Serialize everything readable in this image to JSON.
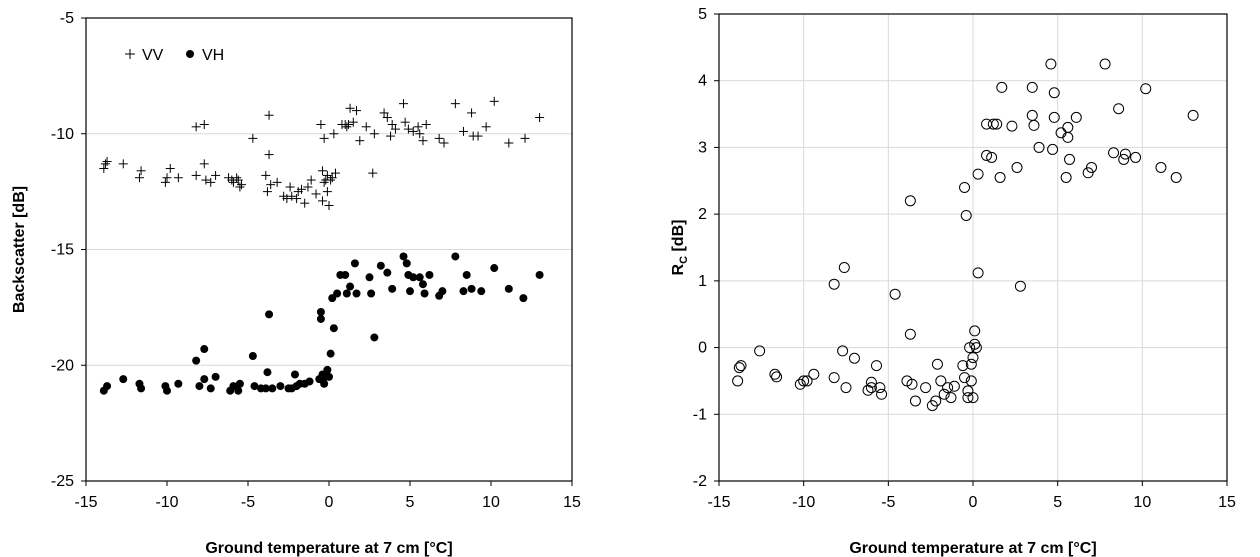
{
  "chart_data": [
    {
      "type": "scatter",
      "xlabel": "Ground temperature at 7 cm [°C]",
      "ylabel": "Backscatter [dB]",
      "xlim": [
        -15,
        15
      ],
      "ylim": [
        -25,
        -5
      ],
      "xticks": [
        -15,
        -10,
        -5,
        0,
        5,
        10,
        15
      ],
      "yticks": [
        -25,
        -20,
        -15,
        -10,
        -5
      ],
      "grid": "horizontal",
      "legend": "top-left",
      "series": [
        {
          "name": "VV",
          "marker": "plus",
          "points": [
            [
              -13.9,
              -11.5
            ],
            [
              -13.8,
              -11.3
            ],
            [
              -13.7,
              -11.2
            ],
            [
              -12.7,
              -11.3
            ],
            [
              -11.7,
              -11.9
            ],
            [
              -11.6,
              -11.6
            ],
            [
              -10.1,
              -12.1
            ],
            [
              -10.0,
              -11.9
            ],
            [
              -9.8,
              -11.5
            ],
            [
              -9.3,
              -11.9
            ],
            [
              -8.2,
              -11.8
            ],
            [
              -8.2,
              -9.7
            ],
            [
              -7.7,
              -9.6
            ],
            [
              -7.7,
              -11.3
            ],
            [
              -7.6,
              -12.0
            ],
            [
              -7.3,
              -12.1
            ],
            [
              -7.0,
              -11.8
            ],
            [
              -6.2,
              -11.9
            ],
            [
              -6.0,
              -12.0
            ],
            [
              -5.9,
              -12.1
            ],
            [
              -5.7,
              -11.9
            ],
            [
              -5.6,
              -12.0
            ],
            [
              -5.5,
              -12.3
            ],
            [
              -5.4,
              -12.2
            ],
            [
              -4.7,
              -10.2
            ],
            [
              -3.9,
              -11.8
            ],
            [
              -3.8,
              -12.5
            ],
            [
              -3.7,
              -9.2
            ],
            [
              -3.7,
              -10.9
            ],
            [
              -3.6,
              -12.2
            ],
            [
              -3.2,
              -12.1
            ],
            [
              -2.8,
              -12.7
            ],
            [
              -2.6,
              -12.8
            ],
            [
              -2.4,
              -12.3
            ],
            [
              -2.3,
              -12.7
            ],
            [
              -2.0,
              -12.8
            ],
            [
              -1.9,
              -12.5
            ],
            [
              -1.7,
              -12.4
            ],
            [
              -1.5,
              -13.0
            ],
            [
              -1.3,
              -12.3
            ],
            [
              -1.1,
              -12.0
            ],
            [
              -0.8,
              -12.6
            ],
            [
              -0.5,
              -9.6
            ],
            [
              -0.4,
              -11.6
            ],
            [
              -0.4,
              -12.9
            ],
            [
              -0.3,
              -12.1
            ],
            [
              -0.3,
              -10.2
            ],
            [
              -0.2,
              -12.0
            ],
            [
              -0.1,
              -11.8
            ],
            [
              -0.1,
              -12.5
            ],
            [
              0.0,
              -13.1
            ],
            [
              0.1,
              -12.0
            ],
            [
              0.2,
              -11.9
            ],
            [
              0.3,
              -10.0
            ],
            [
              0.4,
              -11.7
            ],
            [
              0.8,
              -9.6
            ],
            [
              1.0,
              -9.6
            ],
            [
              1.1,
              -9.7
            ],
            [
              1.2,
              -9.6
            ],
            [
              1.3,
              -8.9
            ],
            [
              1.5,
              -9.5
            ],
            [
              1.7,
              -9.0
            ],
            [
              1.9,
              -10.3
            ],
            [
              2.3,
              -9.7
            ],
            [
              2.7,
              -11.7
            ],
            [
              2.8,
              -10.0
            ],
            [
              3.4,
              -9.1
            ],
            [
              3.6,
              -9.3
            ],
            [
              3.8,
              -10.1
            ],
            [
              3.9,
              -9.6
            ],
            [
              4.1,
              -9.8
            ],
            [
              4.6,
              -8.7
            ],
            [
              4.7,
              -9.5
            ],
            [
              4.9,
              -9.8
            ],
            [
              5.2,
              -9.9
            ],
            [
              5.5,
              -9.7
            ],
            [
              5.6,
              -10.0
            ],
            [
              5.8,
              -10.3
            ],
            [
              6.0,
              -9.6
            ],
            [
              6.8,
              -10.2
            ],
            [
              7.1,
              -10.4
            ],
            [
              7.8,
              -8.7
            ],
            [
              8.3,
              -9.9
            ],
            [
              8.8,
              -9.1
            ],
            [
              8.9,
              -10.1
            ],
            [
              9.2,
              -10.1
            ],
            [
              9.7,
              -9.7
            ],
            [
              10.2,
              -8.6
            ],
            [
              11.1,
              -10.4
            ],
            [
              12.1,
              -10.2
            ],
            [
              13.0,
              -9.3
            ]
          ]
        },
        {
          "name": "VH",
          "marker": "dot",
          "points": [
            [
              -13.9,
              -21.1
            ],
            [
              -13.7,
              -20.9
            ],
            [
              -12.7,
              -20.6
            ],
            [
              -11.7,
              -20.8
            ],
            [
              -11.6,
              -21.0
            ],
            [
              -10.1,
              -20.9
            ],
            [
              -10.0,
              -21.1
            ],
            [
              -9.3,
              -20.8
            ],
            [
              -8.2,
              -19.8
            ],
            [
              -8.0,
              -20.9
            ],
            [
              -7.7,
              -20.6
            ],
            [
              -7.7,
              -19.3
            ],
            [
              -7.3,
              -21.0
            ],
            [
              -7.0,
              -20.5
            ],
            [
              -6.1,
              -21.1
            ],
            [
              -5.9,
              -20.9
            ],
            [
              -5.6,
              -21.1
            ],
            [
              -5.5,
              -20.8
            ],
            [
              -4.7,
              -19.6
            ],
            [
              -4.6,
              -20.9
            ],
            [
              -4.2,
              -21.0
            ],
            [
              -3.9,
              -21.0
            ],
            [
              -3.8,
              -20.3
            ],
            [
              -3.7,
              -17.8
            ],
            [
              -3.5,
              -21.0
            ],
            [
              -3.0,
              -20.9
            ],
            [
              -2.5,
              -21.0
            ],
            [
              -2.3,
              -21.0
            ],
            [
              -2.1,
              -20.4
            ],
            [
              -2.0,
              -20.9
            ],
            [
              -1.8,
              -20.8
            ],
            [
              -1.5,
              -20.8
            ],
            [
              -1.2,
              -20.7
            ],
            [
              -0.6,
              -20.6
            ],
            [
              -0.5,
              -17.7
            ],
            [
              -0.5,
              -18.0
            ],
            [
              -0.4,
              -20.4
            ],
            [
              -0.3,
              -20.8
            ],
            [
              -0.2,
              -20.5
            ],
            [
              -0.1,
              -20.2
            ],
            [
              0.0,
              -20.5
            ],
            [
              0.1,
              -19.5
            ],
            [
              0.2,
              -17.1
            ],
            [
              0.3,
              -18.4
            ],
            [
              0.5,
              -16.9
            ],
            [
              0.7,
              -16.1
            ],
            [
              1.0,
              -16.1
            ],
            [
              1.1,
              -16.9
            ],
            [
              1.3,
              -16.6
            ],
            [
              1.6,
              -15.6
            ],
            [
              1.7,
              -16.9
            ],
            [
              2.5,
              -16.2
            ],
            [
              2.6,
              -16.9
            ],
            [
              2.8,
              -18.8
            ],
            [
              3.2,
              -15.7
            ],
            [
              3.6,
              -16.0
            ],
            [
              3.9,
              -16.7
            ],
            [
              4.6,
              -15.3
            ],
            [
              4.8,
              -15.6
            ],
            [
              4.9,
              -16.1
            ],
            [
              5.0,
              -16.8
            ],
            [
              5.2,
              -16.2
            ],
            [
              5.6,
              -16.2
            ],
            [
              5.8,
              -16.5
            ],
            [
              5.9,
              -16.9
            ],
            [
              6.2,
              -16.1
            ],
            [
              6.8,
              -17.0
            ],
            [
              7.0,
              -16.8
            ],
            [
              7.8,
              -15.3
            ],
            [
              8.3,
              -16.8
            ],
            [
              8.5,
              -16.1
            ],
            [
              8.8,
              -16.7
            ],
            [
              9.4,
              -16.8
            ],
            [
              10.2,
              -15.8
            ],
            [
              11.1,
              -16.7
            ],
            [
              12.0,
              -17.1
            ],
            [
              13.0,
              -16.1
            ]
          ]
        }
      ]
    },
    {
      "type": "scatter",
      "xlabel": "Ground temperature at 7 cm [°C]",
      "ylabel_main": "R",
      "ylabel_sub": "C",
      "ylabel_unit": " [dB]",
      "xlim": [
        -15,
        15
      ],
      "ylim": [
        -2,
        5
      ],
      "xticks": [
        -15,
        -10,
        -5,
        0,
        5,
        10,
        15
      ],
      "yticks": [
        -2,
        -1,
        0,
        1,
        2,
        3,
        4,
        5
      ],
      "grid": "both",
      "legend": "none",
      "series": [
        {
          "marker": "open-circle",
          "points": [
            [
              -13.9,
              -0.5
            ],
            [
              -13.8,
              -0.3
            ],
            [
              -13.7,
              -0.27
            ],
            [
              -12.6,
              -0.05
            ],
            [
              -11.7,
              -0.4
            ],
            [
              -11.6,
              -0.44
            ],
            [
              -10.2,
              -0.55
            ],
            [
              -10.0,
              -0.5
            ],
            [
              -9.8,
              -0.5
            ],
            [
              -9.4,
              -0.4
            ],
            [
              -8.2,
              -0.45
            ],
            [
              -8.2,
              0.95
            ],
            [
              -7.7,
              -0.05
            ],
            [
              -7.6,
              1.2
            ],
            [
              -7.5,
              -0.6
            ],
            [
              -7.0,
              -0.16
            ],
            [
              -6.2,
              -0.64
            ],
            [
              -6.0,
              -0.52
            ],
            [
              -6.0,
              -0.6
            ],
            [
              -5.7,
              -0.27
            ],
            [
              -5.5,
              -0.6
            ],
            [
              -5.4,
              -0.7
            ],
            [
              -4.6,
              0.8
            ],
            [
              -3.9,
              -0.5
            ],
            [
              -3.7,
              2.2
            ],
            [
              -3.7,
              0.2
            ],
            [
              -3.6,
              -0.55
            ],
            [
              -3.4,
              -0.8
            ],
            [
              -2.8,
              -0.6
            ],
            [
              -2.4,
              -0.87
            ],
            [
              -2.2,
              -0.8
            ],
            [
              -2.1,
              -0.25
            ],
            [
              -1.9,
              -0.5
            ],
            [
              -1.7,
              -0.7
            ],
            [
              -1.5,
              -0.6
            ],
            [
              -1.3,
              -0.75
            ],
            [
              -1.1,
              -0.58
            ],
            [
              -0.6,
              -0.27
            ],
            [
              -0.5,
              -0.45
            ],
            [
              -0.5,
              2.4
            ],
            [
              -0.4,
              1.98
            ],
            [
              -0.3,
              -0.65
            ],
            [
              -0.3,
              -0.75
            ],
            [
              -0.2,
              0.0
            ],
            [
              -0.1,
              -0.5
            ],
            [
              -0.1,
              -0.25
            ],
            [
              0.0,
              -0.75
            ],
            [
              0.0,
              -0.15
            ],
            [
              0.1,
              0.05
            ],
            [
              0.1,
              0.25
            ],
            [
              0.2,
              0.0
            ],
            [
              0.3,
              2.6
            ],
            [
              0.3,
              1.12
            ],
            [
              0.8,
              3.35
            ],
            [
              0.8,
              2.88
            ],
            [
              1.1,
              2.85
            ],
            [
              1.2,
              3.35
            ],
            [
              1.4,
              3.35
            ],
            [
              1.6,
              2.55
            ],
            [
              1.7,
              3.9
            ],
            [
              2.3,
              3.32
            ],
            [
              2.6,
              2.7
            ],
            [
              2.8,
              0.92
            ],
            [
              3.5,
              3.9
            ],
            [
              3.5,
              3.48
            ],
            [
              3.6,
              3.33
            ],
            [
              3.9,
              3.0
            ],
            [
              4.6,
              4.25
            ],
            [
              4.7,
              2.97
            ],
            [
              4.8,
              3.82
            ],
            [
              4.8,
              3.45
            ],
            [
              5.2,
              3.22
            ],
            [
              5.5,
              2.55
            ],
            [
              5.6,
              3.15
            ],
            [
              5.6,
              3.3
            ],
            [
              5.7,
              2.82
            ],
            [
              6.1,
              3.45
            ],
            [
              6.8,
              2.62
            ],
            [
              7.0,
              2.7
            ],
            [
              7.8,
              4.25
            ],
            [
              8.3,
              2.92
            ],
            [
              8.6,
              3.58
            ],
            [
              8.9,
              2.82
            ],
            [
              9.0,
              2.9
            ],
            [
              9.6,
              2.85
            ],
            [
              10.2,
              3.88
            ],
            [
              11.1,
              2.7
            ],
            [
              12.0,
              2.55
            ],
            [
              13.0,
              3.48
            ]
          ]
        }
      ]
    }
  ]
}
